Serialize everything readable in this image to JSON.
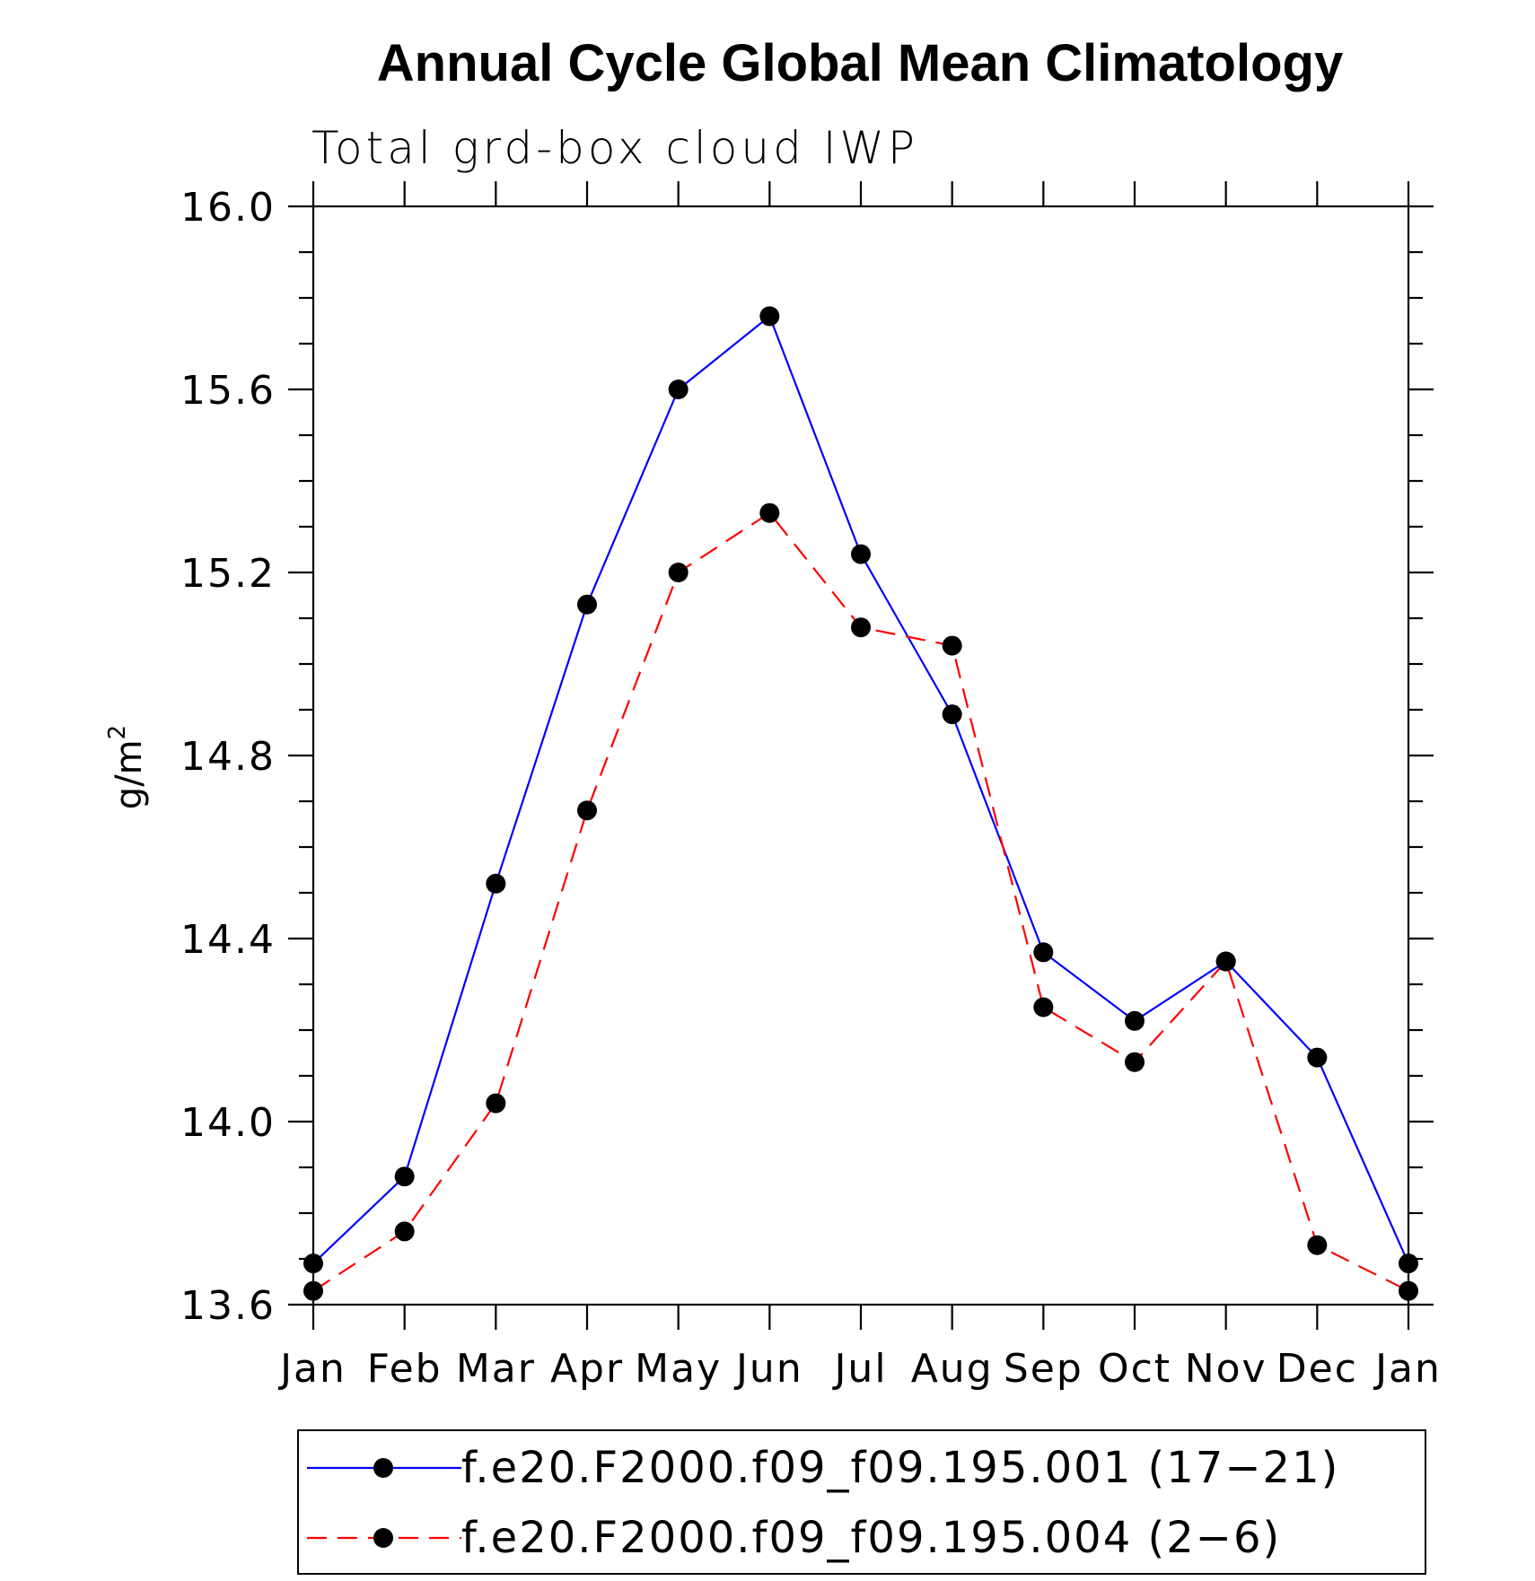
{
  "chart_data": {
    "type": "line",
    "title": "Annual Cycle Global Mean Climatology",
    "subtitle": "Total grd-box cloud IWP",
    "ylabel": "g/m",
    "ylabel_superscript": "2",
    "xlabel": "",
    "ylim": [
      13.6,
      16.0
    ],
    "yticks": [
      "13.6",
      "14.0",
      "14.4",
      "14.8",
      "15.2",
      "15.6",
      "16.0"
    ],
    "ytick_values": [
      13.6,
      14.0,
      14.4,
      14.8,
      15.2,
      15.6,
      16.0
    ],
    "y_minor_step": 0.1,
    "categories": [
      "Jan",
      "Feb",
      "Mar",
      "Apr",
      "May",
      "Jun",
      "Jul",
      "Aug",
      "Sep",
      "Oct",
      "Nov",
      "Dec",
      "Jan"
    ],
    "series": [
      {
        "name": "f.e20.F2000.f09_f09.195.001 (17−21)",
        "color": "#0000ff",
        "dash": "solid",
        "values": [
          13.69,
          13.88,
          14.52,
          15.13,
          15.6,
          15.76,
          15.24,
          14.89,
          14.37,
          14.22,
          14.35,
          14.14,
          13.69
        ]
      },
      {
        "name": "f.e20.F2000.f09_f09.195.004 (2−6)",
        "color": "#ff0000",
        "dash": "dashed",
        "values": [
          13.63,
          13.76,
          14.04,
          14.68,
          15.2,
          15.33,
          15.08,
          15.04,
          14.25,
          14.13,
          14.35,
          13.73,
          13.63
        ]
      }
    ],
    "marker_color": "#000000",
    "legend_position": "bottom-center"
  }
}
